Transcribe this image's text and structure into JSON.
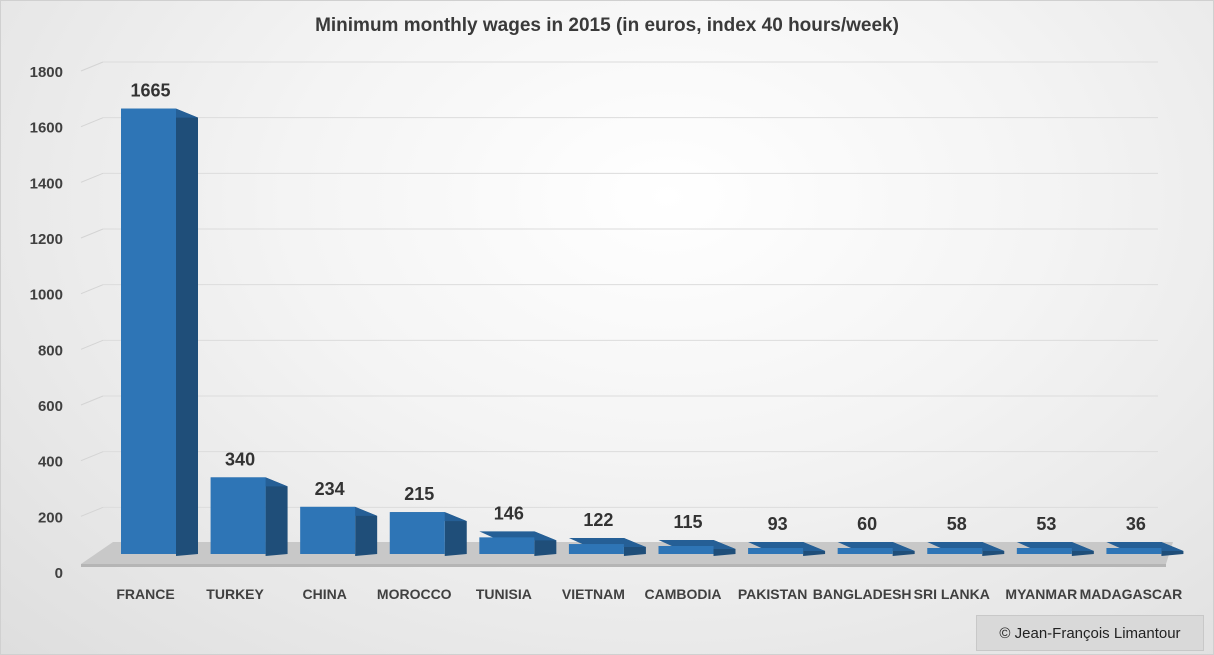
{
  "chart_data": {
    "type": "bar",
    "title": "Minimum monthly wages in 2015 (in euros, index 40 hours/week)",
    "categories": [
      "FRANCE",
      "TURKEY",
      "CHINA",
      "MOROCCO",
      "TUNISIA",
      "VIETNAM",
      "CAMBODIA",
      "PAKISTAN",
      "BANGLADESH",
      "SRI LANKA",
      "MYANMAR",
      "MADAGASCAR"
    ],
    "values": [
      1665,
      340,
      234,
      215,
      146,
      122,
      115,
      93,
      60,
      58,
      53,
      36
    ],
    "ylim": [
      0,
      1800
    ],
    "yticks": [
      0,
      200,
      400,
      600,
      800,
      1000,
      1200,
      1400,
      1600,
      1800
    ],
    "grid": true,
    "colors": {
      "front": "#2e75b6",
      "side": "#1f4e79",
      "top": "#255f96",
      "floor": "#c8c8c8"
    }
  },
  "copyright": "© Jean-François Limantour"
}
